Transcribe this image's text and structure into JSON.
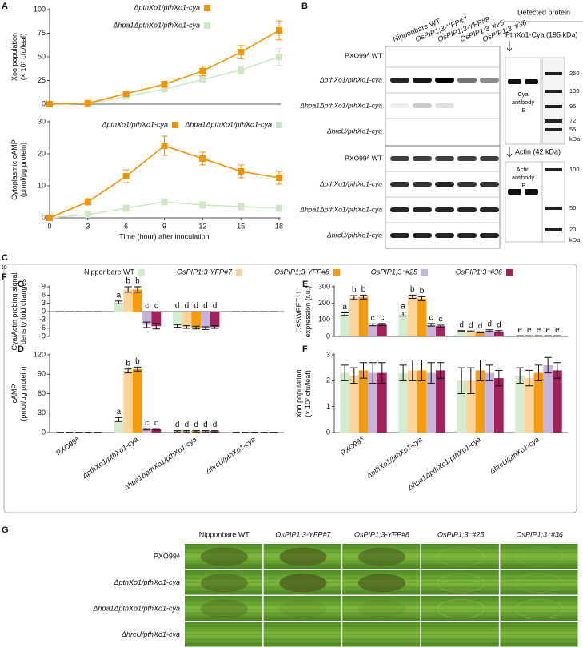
{
  "panel_labels": {
    "a": "A",
    "b": "B",
    "c": "C",
    "d": "D",
    "e": "E",
    "f": "F",
    "g": "G",
    "range": [
      "C",
      "to",
      "F"
    ]
  },
  "chart_data": [
    {
      "type": "line",
      "x": [
        0,
        3,
        6,
        9,
        12,
        15,
        18
      ],
      "xlim": [
        0,
        18
      ],
      "ylim": [
        0,
        100
      ],
      "yticks": [
        0,
        25,
        50,
        75,
        100
      ],
      "ylabel": [
        "Xoo population",
        "(× 10⁷ cfu/leaf)"
      ],
      "series": [
        {
          "name": "ΔpthXo1/pthXo1-cya",
          "color": "#f39200",
          "values": [
            0,
            1,
            11,
            21,
            35,
            55,
            78
          ],
          "errors": [
            0,
            1,
            2,
            3,
            5,
            7,
            10
          ]
        },
        {
          "name": "Δhpa1ΔpthXo1/pthXo1-cya",
          "color": "#cfe6c4",
          "values": [
            0,
            1,
            8,
            16,
            26,
            36,
            50
          ],
          "errors": [
            0,
            1,
            2,
            2,
            3,
            4,
            9
          ]
        }
      ]
    },
    {
      "type": "line",
      "x": [
        0,
        3,
        6,
        9,
        12,
        15,
        18
      ],
      "xlim": [
        0,
        18
      ],
      "xticks": [
        0,
        3,
        6,
        9,
        12,
        15,
        18
      ],
      "xlabel": "Time (hour) after inoculation",
      "ylim": [
        0,
        30
      ],
      "yticks": [
        0,
        10,
        20,
        30
      ],
      "ylabel": [
        "Cytoplasmic cAMP",
        "(pmol/μg protein)"
      ],
      "series": [
        {
          "name": "ΔpthXo1/pthXo1-cya",
          "color": "#f39200",
          "values": [
            0,
            5,
            13,
            22.5,
            18.5,
            14.5,
            12.5
          ],
          "errors": [
            0,
            1,
            2,
            3,
            2,
            2,
            2
          ]
        },
        {
          "name": "Δhpa1ΔpthXo1/pthXo1-cya",
          "color": "#cfe6c4",
          "values": [
            0,
            1,
            3,
            5,
            4,
            3.5,
            3
          ],
          "errors": [
            0,
            0.5,
            1,
            1,
            1,
            1,
            1
          ]
        }
      ]
    },
    {
      "type": "bar",
      "ylim": [
        -9,
        9
      ],
      "yticks": [
        -9,
        -6,
        -3,
        0,
        3,
        6,
        9
      ],
      "ylabel": [
        "Cya/Actin probing signal",
        "density fold changes"
      ],
      "series": [
        {
          "color": "#d5ebcf",
          "values": [
            0,
            3.3,
            -5.2,
            0
          ],
          "errors": [
            0,
            0.5,
            0.5,
            0
          ]
        },
        {
          "color": "#fcd49c",
          "values": [
            0,
            8,
            -5.6,
            0
          ],
          "errors": [
            0,
            1,
            0.5,
            0
          ]
        },
        {
          "color": "#f39c12",
          "values": [
            0,
            8,
            -5.8,
            0
          ],
          "errors": [
            0,
            1,
            0.5,
            0
          ]
        },
        {
          "color": "#c8b3da",
          "values": [
            0,
            -4.8,
            -6,
            0
          ],
          "errors": [
            0,
            1,
            0.5,
            0
          ]
        },
        {
          "color": "#a3215a",
          "values": [
            0,
            -5.3,
            -5.6,
            0
          ],
          "errors": [
            0,
            1,
            0.5,
            0
          ]
        }
      ],
      "letters": [
        null,
        [
          "a",
          "b",
          "b",
          "c",
          "c"
        ],
        [
          "d",
          "d",
          "d",
          "d",
          "d"
        ],
        null
      ]
    },
    {
      "type": "bar",
      "categories": [
        "PXO99ᴬ",
        "ΔpthXo1/pthXo1-cya",
        "Δhpa1ΔpthXo1/pthXo1-cya",
        "ΔhrcU/pthXo1-cya"
      ],
      "ylim": [
        0,
        120
      ],
      "yticks": [
        0,
        30,
        60,
        90,
        120
      ],
      "ylabel": [
        "cAMP",
        "(pmol/μg protein)"
      ],
      "series": [
        {
          "color": "#d5ebcf",
          "values": [
            0.5,
            20,
            2,
            0.5
          ],
          "errors": [
            0,
            3,
            1,
            0
          ]
        },
        {
          "color": "#fcd49c",
          "values": [
            0.5,
            95,
            2,
            0.5
          ],
          "errors": [
            0,
            3,
            1,
            0
          ]
        },
        {
          "color": "#f39c12",
          "values": [
            0.5,
            98,
            2,
            0.5
          ],
          "errors": [
            0,
            3,
            1,
            0
          ]
        },
        {
          "color": "#c8b3da",
          "values": [
            0.5,
            5,
            2,
            0.5
          ],
          "errors": [
            0,
            1,
            1,
            0
          ]
        },
        {
          "color": "#a3215a",
          "values": [
            0.5,
            5,
            2,
            0.5
          ],
          "errors": [
            0,
            1,
            1,
            0
          ]
        }
      ],
      "letters": [
        null,
        [
          "a",
          "b",
          "b",
          "c",
          "c"
        ],
        [
          "d",
          "d",
          "d",
          "d",
          "d"
        ],
        null
      ]
    },
    {
      "type": "bar",
      "ylim": [
        0,
        300
      ],
      "yticks": [
        0,
        100,
        200,
        300
      ],
      "ylabel": [
        "OsSWEET11",
        "expression (r.u.)"
      ],
      "series": [
        {
          "color": "#d5ebcf",
          "values": [
            135,
            135,
            32,
            3
          ],
          "errors": [
            8,
            12,
            3,
            1
          ]
        },
        {
          "color": "#fcd49c",
          "values": [
            235,
            240,
            30,
            3
          ],
          "errors": [
            12,
            10,
            3,
            1
          ]
        },
        {
          "color": "#f39c12",
          "values": [
            238,
            228,
            25,
            3
          ],
          "errors": [
            12,
            12,
            3,
            1
          ]
        },
        {
          "color": "#c8b3da",
          "values": [
            70,
            70,
            35,
            3
          ],
          "errors": [
            6,
            8,
            5,
            1
          ]
        },
        {
          "color": "#a3215a",
          "values": [
            72,
            62,
            30,
            3
          ],
          "errors": [
            6,
            6,
            5,
            1
          ]
        }
      ],
      "letters": [
        [
          "a",
          "b",
          "b",
          "c",
          "c"
        ],
        [
          "a",
          "b",
          "b",
          "c",
          "c"
        ],
        [
          "d",
          "d",
          "d",
          "d",
          "d"
        ],
        [
          "e",
          "e",
          "e",
          "e",
          "e"
        ]
      ]
    },
    {
      "type": "bar",
      "categories": [
        "PXO99ᴬ",
        "ΔpthXo1/pthXo1-cya",
        "Δhpa1ΔpthXo1/pthXo1-cya",
        "ΔhrcU/pthXo1-cya"
      ],
      "ylim": [
        0,
        3
      ],
      "yticks": [
        0,
        1,
        2,
        3
      ],
      "ylabel": [
        "Xoo population",
        "(× 10⁷ cfu/leaf)"
      ],
      "series": [
        {
          "color": "#d5ebcf",
          "values": [
            2.3,
            2.3,
            2.0,
            2.2
          ],
          "errors": [
            0.3,
            0.3,
            0.5,
            0.3
          ]
        },
        {
          "color": "#fcd49c",
          "values": [
            2.2,
            2.4,
            2.0,
            2.1
          ],
          "errors": [
            0.3,
            0.4,
            0.5,
            0.3
          ]
        },
        {
          "color": "#f39c12",
          "values": [
            2.4,
            2.4,
            2.4,
            2.3
          ],
          "errors": [
            0.3,
            0.4,
            0.4,
            0.3
          ]
        },
        {
          "color": "#c8b3da",
          "values": [
            2.3,
            2.3,
            2.3,
            2.6
          ],
          "errors": [
            0.4,
            0.4,
            0.3,
            0.3
          ]
        },
        {
          "color": "#a3215a",
          "values": [
            2.3,
            2.4,
            2.1,
            2.4
          ],
          "errors": [
            0.4,
            0.3,
            0.3,
            0.3
          ]
        }
      ]
    }
  ],
  "legend": {
    "names": [
      "Nipponbare WT",
      "OsPIP1;3-YFP#7",
      "OsPIP1;3-YFP#8",
      "OsPIP1;3⁻#25",
      "OsPIP1;3⁻#36"
    ]
  },
  "blot": {
    "columns": [
      "Nipponbare WT",
      "OsPIP1;3-YFP#7",
      "OsPIP1;3-YFP#8",
      "OsPIP1;3⁻#25",
      "OsPIP1;3⁻#36"
    ],
    "rows": [
      "PXO99ᴬ WT",
      "ΔpthXo1/pthXo1-cya",
      "Δhpa1ΔpthXo1/pthXo1-cya",
      "ΔhrcU/pthXo1-cya",
      "PXO99ᴬ WT",
      "ΔpthXo1/pthXo1-cya",
      "Δhpa1ΔpthXo1/pthXo1-cya",
      "ΔhrcU/pthXo1-cya"
    ],
    "detected_protein": "Detected protein",
    "cya_label": "PthXo1-Cya (195 kDa)",
    "cya_antibody": [
      "Cya",
      "antibody",
      "IB"
    ],
    "ladder_top": [
      "250",
      "130",
      "95",
      "72",
      "55"
    ],
    "ladder_top_unit": "kDa",
    "actin_label": "Actin (42 kDa)",
    "actin_antibody": [
      "Actin",
      "antibody",
      "IB"
    ],
    "ladder_bottom": [
      "100",
      "50",
      "20"
    ],
    "ladder_bottom_unit": "kDa"
  },
  "leaves": {
    "columns": [
      "Nipponbare WT",
      "OsPIP1;3-YFP#7",
      "OsPIP1;3-YFP#8",
      "OsPIP1;3⁻#25",
      "OsPIP1;3⁻#36"
    ],
    "rows": [
      "PXO99ᴬ",
      "ΔpthXo1/pthXo1-cya",
      "Δhpa1ΔpthXo1/pthXo1-cya",
      "ΔhrcU/pthXo1-cya"
    ]
  }
}
